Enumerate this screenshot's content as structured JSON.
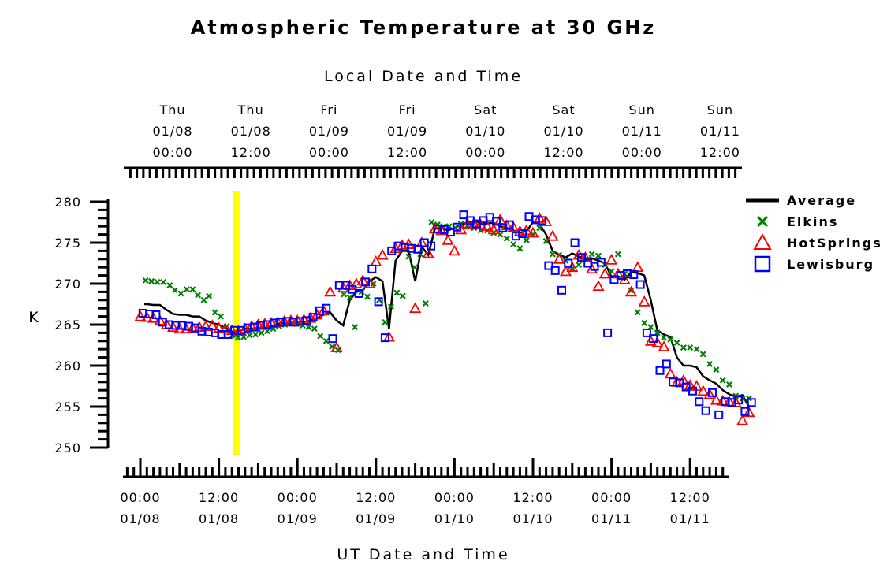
{
  "chart_data": {
    "type": "line",
    "title": "Atmospheric Temperature at 30 GHz",
    "top_axis_label": "Local Date and Time",
    "xlabel": "UT Date and Time",
    "ylabel": "K",
    "ylim": [
      250,
      280
    ],
    "y_ticks": [
      "250",
      "255",
      "260",
      "265",
      "270",
      "275",
      "280"
    ],
    "x_unit": "hours since 01/08 00:00 UT",
    "xlim": [
      -0.3,
      93.5
    ],
    "bottom_ticks": [
      {
        "time": "00:00",
        "date": "01/08"
      },
      {
        "time": "12:00",
        "date": "01/08"
      },
      {
        "time": "00:00",
        "date": "01/09"
      },
      {
        "time": "12:00",
        "date": "01/09"
      },
      {
        "time": "00:00",
        "date": "01/10"
      },
      {
        "time": "12:00",
        "date": "01/10"
      },
      {
        "time": "00:00",
        "date": "01/11"
      },
      {
        "time": "12:00",
        "date": "01/11"
      }
    ],
    "top_ticks": [
      {
        "day": "Thu",
        "date": "01/08",
        "time": "00:00"
      },
      {
        "day": "Thu",
        "date": "01/08",
        "time": "12:00"
      },
      {
        "day": "Fri",
        "date": "01/09",
        "time": "00:00"
      },
      {
        "day": "Fri",
        "date": "01/09",
        "time": "12:00"
      },
      {
        "day": "Sat",
        "date": "01/10",
        "time": "00:00"
      },
      {
        "day": "Sat",
        "date": "01/10",
        "time": "12:00"
      },
      {
        "day": "Sun",
        "date": "01/11",
        "time": "00:00"
      },
      {
        "day": "Sun",
        "date": "01/11",
        "time": "12:00"
      }
    ],
    "marker_line": {
      "x": 14.7,
      "color": "#ffff00"
    },
    "legend_position": "right",
    "series": [
      {
        "name": "Average",
        "marker": "line",
        "color": "#000000",
        "x": [
          0.6,
          1,
          2,
          3,
          4,
          5,
          6,
          7,
          8,
          9,
          10,
          11,
          12,
          13,
          14,
          15,
          16,
          17,
          18,
          19,
          20,
          21,
          22,
          23,
          24,
          25,
          26,
          27,
          28,
          29,
          30,
          31,
          32,
          33,
          34,
          35,
          36,
          37,
          38,
          39,
          40,
          41,
          42,
          43,
          44,
          45,
          46,
          47,
          48,
          49,
          50,
          51,
          52,
          53,
          54,
          55,
          56,
          57,
          58,
          59,
          60,
          61,
          62,
          63,
          64,
          65,
          66,
          67,
          68,
          69,
          70,
          71,
          72,
          73,
          74,
          75,
          76,
          77,
          78,
          79,
          80,
          81,
          82,
          83,
          84,
          85,
          86,
          87,
          88,
          89,
          90,
          91,
          92,
          93
        ],
        "y": [
          267.5,
          267.5,
          267.4,
          267.4,
          266.8,
          266.3,
          266.2,
          266.2,
          266,
          266,
          265.5,
          265.2,
          265,
          264.6,
          264.1,
          264.2,
          264.5,
          264.5,
          264.6,
          264.6,
          264.8,
          265.1,
          265.2,
          265.2,
          265.2,
          265.3,
          265.5,
          265.8,
          266.2,
          266.5,
          265.5,
          264.9,
          268,
          269,
          269.2,
          270.3,
          270.8,
          270.3,
          264.5,
          272.8,
          274,
          274,
          270.3,
          274.5,
          273.5,
          276.7,
          276.8,
          276.5,
          276.8,
          277.2,
          277.5,
          277.5,
          277.5,
          277.4,
          277.4,
          277,
          276.8,
          276.5,
          276.2,
          276.4,
          277.5,
          277.3,
          276,
          274,
          273.5,
          273.2,
          273.7,
          273.3,
          273.1,
          273.1,
          272.8,
          272.5,
          270.8,
          270.9,
          270.5,
          271.4,
          271.3,
          271,
          268,
          264.3,
          263.8,
          263.5,
          261,
          260,
          260,
          259.8,
          258.7,
          258.2,
          257.8,
          257,
          256.5,
          256.2,
          256.4,
          255
        ]
      },
      {
        "name": "Elkins",
        "marker": "x",
        "color": "#008000",
        "x": [
          0.8,
          1.7,
          2.6,
          3.5,
          4.5,
          5.3,
          6.2,
          7.1,
          8.0,
          8.8,
          9.7,
          10.5,
          11.4,
          12.3,
          13.2,
          14.1,
          14.9,
          15.8,
          16.7,
          17.6,
          18.5,
          19.4,
          20.3,
          21.2,
          22.1,
          23.0,
          23.9,
          24.8,
          25.7,
          26.6,
          27.5,
          28.4,
          29.3,
          30.2,
          31.1,
          32.0,
          32.8,
          33.8,
          34.7,
          35.6,
          36.5,
          37.4,
          38.3,
          39.2,
          40.1,
          41.0,
          41.9,
          42.8,
          43.6,
          44.5,
          45.4,
          46.3,
          47.2,
          48.1,
          49.0,
          50.0,
          51.0,
          52.0,
          53.0,
          54.0,
          55.0,
          56.0,
          57.0,
          58.0,
          59.0,
          60.0,
          61.0,
          62.0,
          63.0,
          64.0,
          65.0,
          66.0,
          67.0,
          68.0,
          69.0,
          70.0,
          71.0,
          72.0,
          73.0,
          74.0,
          75.0,
          76.0,
          77.0,
          78.0,
          79.0,
          80.0,
          81.0,
          82.0,
          83.0,
          84.0,
          85.0,
          86.0,
          87.0,
          88.0,
          89.0,
          90.0,
          91.0,
          92.0,
          93.0
        ],
        "y": [
          270.4,
          270.3,
          270.2,
          270.2,
          269.8,
          269.2,
          268.8,
          269.3,
          269.3,
          268.6,
          268.0,
          268.5,
          266.5,
          266.0,
          264.8,
          263.7,
          263.4,
          263.5,
          263.7,
          263.8,
          264.0,
          264.2,
          264.5,
          264.8,
          265.0,
          265.1,
          265.1,
          264.9,
          264.7,
          264.5,
          263.6,
          263.0,
          262.3,
          261.9,
          268.7,
          268.3,
          264.7,
          269.0,
          268.4,
          270.0,
          268.0,
          265.3,
          267.2,
          268.9,
          268.5,
          273.3,
          272.0,
          273.6,
          267.6,
          277.5,
          277.2,
          277.0,
          277.0,
          276.8,
          277.3,
          277.1,
          276.8,
          276.5,
          276.5,
          276.2,
          276.0,
          275.5,
          274.8,
          274.3,
          275.3,
          276.0,
          276.8,
          275.2,
          273.6,
          273.5,
          272.8,
          271.8,
          272.3,
          273.0,
          273.6,
          273.4,
          272.3,
          271.5,
          273.6,
          271.2,
          269.2,
          266.5,
          265.2,
          264.7,
          264.0,
          263.4,
          263.2,
          262.8,
          262.2,
          262.2,
          262.0,
          261.4,
          260.2,
          259.5,
          258.2,
          257.7,
          256.3,
          256.0,
          256.0
        ]
      },
      {
        "name": "HotSprings",
        "marker": "triangle",
        "color": "#ff0000",
        "x": [
          0,
          1,
          2,
          3,
          4,
          5,
          6,
          7,
          8,
          9,
          10,
          11,
          12,
          13,
          14,
          15,
          16,
          17,
          18,
          19,
          20,
          21,
          22,
          23,
          24,
          25,
          26,
          27,
          28,
          29,
          30,
          31,
          32,
          33,
          34,
          35,
          36,
          37,
          38,
          39,
          40,
          41,
          42,
          43,
          44,
          45,
          46,
          47,
          48,
          49,
          50,
          51,
          52,
          53,
          54,
          55,
          56,
          57,
          58,
          59,
          60,
          61,
          62,
          63,
          64,
          65,
          66,
          67,
          68,
          69,
          70,
          71,
          72,
          73,
          74,
          75,
          76,
          77,
          78,
          79,
          80,
          81,
          82,
          83,
          84,
          85,
          86,
          87,
          88,
          89,
          90,
          91,
          92,
          93
        ],
        "y": [
          266,
          265.9,
          265.8,
          265.5,
          265,
          264.7,
          264.5,
          264.5,
          264.6,
          264.7,
          264.8,
          264.9,
          264.6,
          264.5,
          264.3,
          264.2,
          264.5,
          264.8,
          265,
          265.1,
          265.2,
          265.3,
          265.4,
          265.5,
          265.5,
          265.6,
          265.8,
          266.2,
          266.7,
          269,
          262.2,
          269.5,
          269.8,
          270,
          270.4,
          270,
          272.7,
          273.5,
          263.5,
          274.3,
          274.7,
          274.8,
          267,
          275,
          273.7,
          276.7,
          276.5,
          275.3,
          274,
          276.6,
          277.3,
          277.3,
          277.2,
          277,
          276.6,
          277.8,
          277.1,
          276.9,
          276.4,
          276.5,
          276.2,
          278,
          277.6,
          275.8,
          273,
          271.5,
          272,
          273.5,
          273.2,
          271.8,
          269.7,
          271.2,
          272.9,
          271.2,
          270.5,
          269,
          272,
          267.8,
          263,
          262.8,
          262.3,
          259,
          258,
          258.2,
          257.6,
          257.5,
          256.9,
          256.5,
          255.8,
          255.7,
          255.6,
          255.5,
          253.3,
          254.3
        ]
      },
      {
        "name": "Lewisburg",
        "marker": "square",
        "color": "#0000ff",
        "x": [
          0.4,
          1.4,
          2.4,
          3.4,
          4.4,
          5.4,
          6.4,
          7.4,
          8.4,
          9.4,
          10.4,
          11.4,
          12.4,
          13.4,
          14.4,
          15.4,
          16.4,
          17.4,
          18.4,
          19.4,
          20.4,
          21.4,
          22.4,
          23.4,
          24.4,
          25.4,
          26.4,
          27.4,
          28.4,
          29.4,
          30.4,
          31.4,
          32.4,
          33.4,
          34.4,
          35.4,
          36.4,
          37.4,
          38.4,
          39.4,
          40.4,
          41.4,
          42.4,
          43.4,
          44.4,
          45.4,
          46.4,
          47.4,
          48.4,
          49.4,
          50.4,
          51.4,
          52.4,
          53.4,
          54.4,
          55.4,
          56.4,
          57.4,
          58.4,
          59.4,
          60.4,
          61.4,
          62.4,
          63.4,
          64.4,
          65.4,
          66.4,
          67.4,
          68.4,
          69.4,
          70.4,
          71.4,
          72.4,
          73.4,
          74.4,
          75.4,
          76.4,
          77.4,
          78.4,
          79.4,
          80.4,
          81.4,
          82.4,
          83.4,
          84.4,
          85.4,
          86.4,
          87.4,
          88.4,
          89.4,
          90.4,
          91.4,
          92.4,
          93.4
        ],
        "y": [
          266.4,
          266.3,
          266.2,
          265.3,
          265,
          264.9,
          264.9,
          264.8,
          264.6,
          264.2,
          264.1,
          264,
          263.8,
          263.8,
          264.3,
          264.3,
          264.6,
          264.7,
          264.9,
          265,
          265.2,
          265.3,
          265.4,
          265.3,
          265.4,
          265.5,
          265.9,
          266.7,
          267,
          263.3,
          269.8,
          269.8,
          269.3,
          268.8,
          270.2,
          271.8,
          267.8,
          263.4,
          274,
          274.6,
          274.4,
          274.3,
          274.2,
          275,
          274.6,
          276.7,
          276.6,
          276.3,
          276.9,
          278.4,
          277.7,
          277.3,
          277.7,
          278.1,
          277.6,
          276.8,
          277.2,
          275.8,
          276.1,
          278.2,
          277.8,
          277.7,
          272.2,
          271.6,
          269.2,
          272.5,
          275,
          273.2,
          272.5,
          272.1,
          272.6,
          264,
          270.5,
          271,
          271.2,
          271.1,
          269.9,
          264,
          263.3,
          259.4,
          260.2,
          258,
          257.9,
          257.4,
          256.9,
          255.6,
          254.5,
          256.7,
          254,
          255.6,
          255.5,
          255.8,
          254.4,
          255.5
        ]
      }
    ]
  }
}
